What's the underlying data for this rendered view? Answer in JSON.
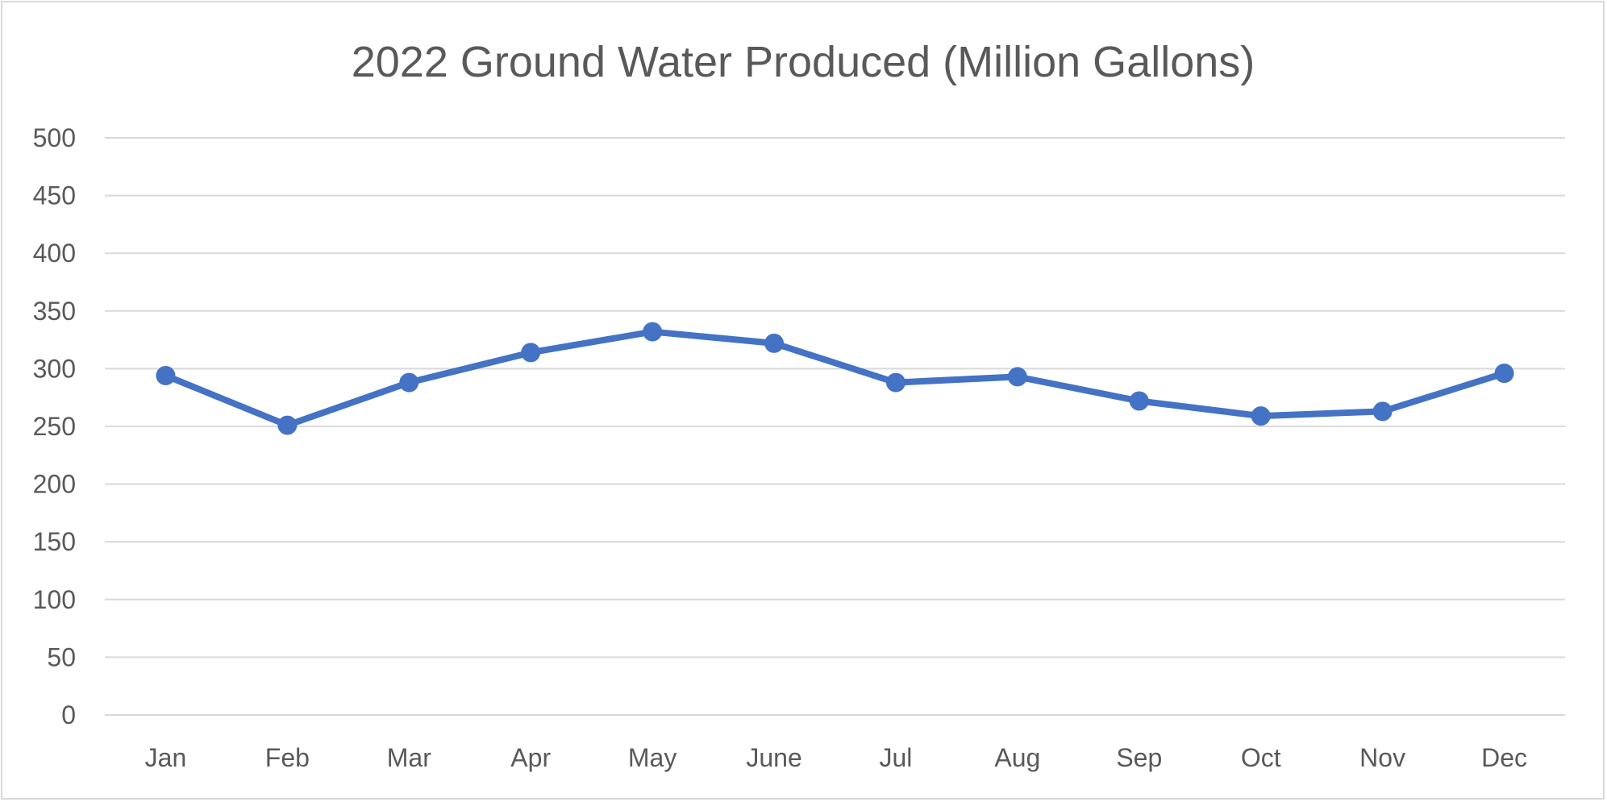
{
  "chart_data": {
    "type": "line",
    "title": "2022 Ground Water Produced (Million Gallons)",
    "xlabel": "",
    "ylabel": "",
    "categories": [
      "Jan",
      "Feb",
      "Mar",
      "Apr",
      "May",
      "June",
      "Jul",
      "Aug",
      "Sep",
      "Oct",
      "Nov",
      "Dec"
    ],
    "series": [
      {
        "name": "Ground Water Produced",
        "values": [
          294,
          251,
          288,
          314,
          332,
          322,
          288,
          293,
          272,
          259,
          263,
          296
        ],
        "color": "#4472c4",
        "markers": true
      }
    ],
    "ylim": [
      0,
      500
    ],
    "yticks": [
      0,
      50,
      100,
      150,
      200,
      250,
      300,
      350,
      400,
      450,
      500
    ],
    "grid": true,
    "legend": "none"
  },
  "colors": {
    "grid": "#d9d9d9",
    "text": "#595959",
    "border": "#d9d9d9"
  }
}
